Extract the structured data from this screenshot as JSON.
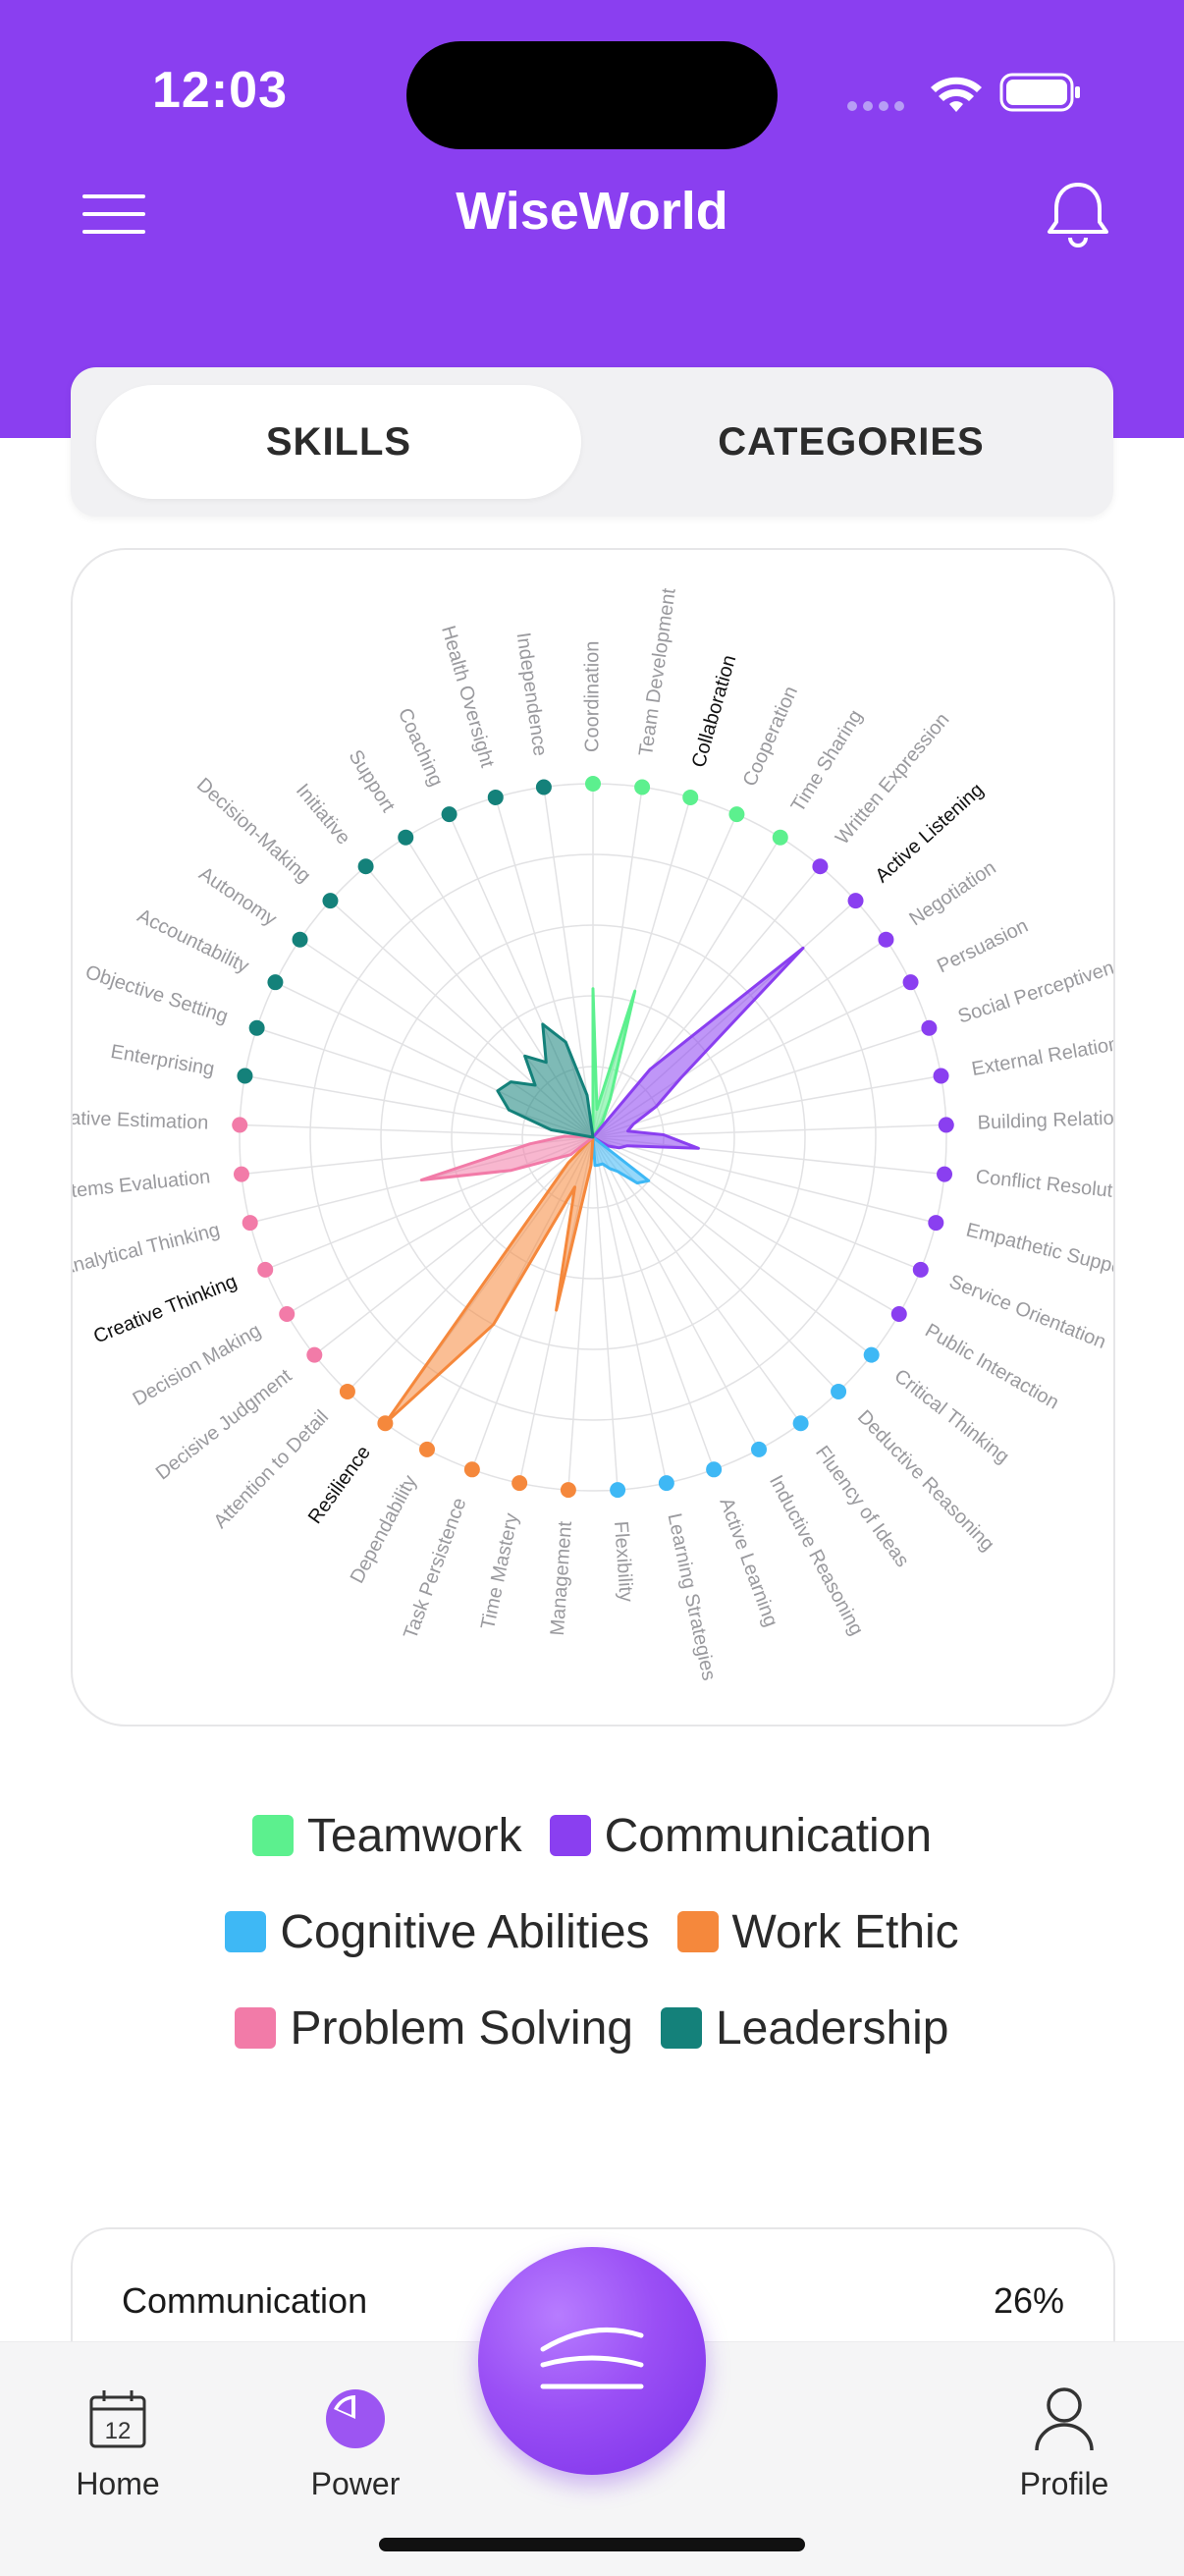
{
  "status_bar": {
    "time": "12:03"
  },
  "header": {
    "title": "WiseWorld"
  },
  "icons": {
    "menu": "hamburger-menu-icon",
    "notifications": "bell-icon",
    "home": "calendar-icon",
    "power": "pie-chart-icon",
    "fab": "waves-icon",
    "profile": "person-icon"
  },
  "tabs": [
    {
      "label": "SKILLS"
    },
    {
      "label": "CATEGORIES"
    }
  ],
  "colors": {
    "brand": "#8a3ff0",
    "Teamwork": "#5cf08e",
    "Communication": "#8a3ff0",
    "Cognitive Abilities": "#3eb8f5",
    "Work Ethic": "#f5883c",
    "Problem Solving": "#f27ba8",
    "Leadership": "#14817a"
  },
  "chart_data": {
    "type": "radar",
    "series": [
      {
        "name": "Teamwork",
        "skills": [
          "Coordination",
          "Team Development",
          "Collaboration",
          "Cooperation",
          "Time Sharing"
        ],
        "values": [
          0.42,
          0.08,
          0.43,
          0.12,
          0.05
        ]
      },
      {
        "name": "Communication",
        "skills": [
          "Written Expression",
          "Active Listening",
          "Negotiation",
          "Persuasion",
          "Social Perceptiveness",
          "External Relations",
          "Building Relationships",
          "Conflict Resolution",
          "Empathetic Support",
          "Service Orientation",
          "Public Interaction"
        ],
        "values": [
          0.25,
          0.8,
          0.3,
          0.2,
          0.12,
          0.1,
          0.2,
          0.3,
          0.1,
          0.08,
          0.05
        ]
      },
      {
        "name": "Cognitive Abilities",
        "skills": [
          "Critical Thinking",
          "Deductive Reasoning",
          "Fluency of Ideas",
          "Inductive Reasoning",
          "Active Learning",
          "Learning Strategies",
          "Flexibility"
        ],
        "values": [
          0.2,
          0.18,
          0.12,
          0.1,
          0.08,
          0.08,
          0.08
        ]
      },
      {
        "name": "Work Ethic",
        "skills": [
          "Management",
          "Time Mastery",
          "Task Persistence",
          "Dependability",
          "Resilience",
          "Attention to Detail"
        ],
        "values": [
          0.08,
          0.5,
          0.15,
          0.6,
          1.0,
          0.1
        ]
      },
      {
        "name": "Problem Solving",
        "skills": [
          "Decisive Judgment",
          "Decision Making",
          "Creative Thinking",
          "Analytical Thinking",
          "Systems Evaluation",
          "Quantitative Estimation"
        ],
        "values": [
          0.08,
          0.12,
          0.25,
          0.5,
          0.18,
          0.08
        ]
      },
      {
        "name": "Leadership",
        "skills": [
          "Enterprising",
          "Objective Setting",
          "Accountability",
          "Autonomy",
          "Decision-Making",
          "Initiative",
          "Support",
          "Coaching",
          "Health Oversight",
          "Independence"
        ],
        "values": [
          0.12,
          0.25,
          0.3,
          0.28,
          0.22,
          0.3,
          0.25,
          0.35,
          0.28,
          0.12
        ]
      }
    ],
    "highlighted": [
      "Collaboration",
      "Active Listening",
      "Creative Thinking",
      "Resilience",
      "Persistence"
    ],
    "rings": 5,
    "legend_position": "bottom"
  },
  "legend": [
    [
      {
        "label": "Teamwork"
      },
      {
        "label": "Communication"
      }
    ],
    [
      {
        "label": "Cognitive Abilities"
      },
      {
        "label": "Work Ethic"
      }
    ],
    [
      {
        "label": "Problem Solving"
      },
      {
        "label": "Leadership"
      }
    ]
  ],
  "summary": {
    "label": "Communication",
    "value": "26%"
  },
  "bottom_nav": {
    "home": "Home",
    "power": "Power",
    "profile": "Profile",
    "calendar_day": "12"
  }
}
